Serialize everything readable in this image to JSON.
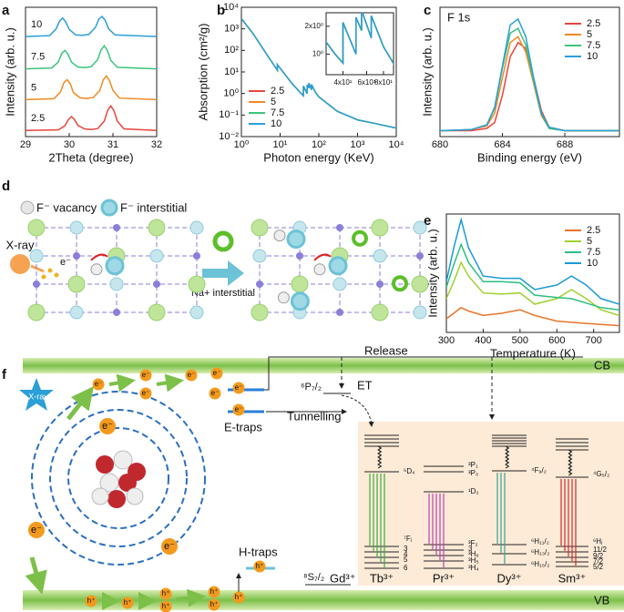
{
  "chart_data": [
    {
      "type": "line",
      "xlabel": "2Theta (degree)",
      "ylabel": "Intensity (arb. u.)",
      "xlim": [
        29,
        32
      ],
      "xticks": [
        29,
        30,
        31,
        32
      ],
      "ylim": [
        0,
        4.2
      ],
      "legend": "inline",
      "series": [
        {
          "name": "2.5",
          "color": "#e8453c",
          "x": [
            29,
            29.75,
            29.9,
            29.98,
            30.05,
            30.12,
            30.2,
            30.35,
            30.5,
            30.65,
            30.8,
            30.88,
            30.95,
            31.02,
            31.1,
            31.25,
            32
          ],
          "values": [
            0.2,
            0.22,
            0.35,
            0.55,
            0.65,
            0.55,
            0.36,
            0.25,
            0.23,
            0.26,
            0.5,
            0.85,
            1.0,
            0.85,
            0.5,
            0.25,
            0.2
          ]
        },
        {
          "name": "5",
          "color": "#f08a24",
          "x": [
            29,
            29.65,
            29.8,
            29.88,
            29.95,
            30.02,
            30.1,
            30.25,
            30.4,
            30.55,
            30.7,
            30.78,
            30.85,
            30.92,
            31.0,
            31.15,
            32
          ],
          "values": [
            1.2,
            1.23,
            1.45,
            1.75,
            1.85,
            1.72,
            1.42,
            1.26,
            1.24,
            1.27,
            1.5,
            1.85,
            1.97,
            1.82,
            1.5,
            1.25,
            1.2
          ]
        },
        {
          "name": "7.5",
          "color": "#3cc47c",
          "x": [
            29,
            29.6,
            29.75,
            29.83,
            29.9,
            29.97,
            30.05,
            30.2,
            30.35,
            30.5,
            30.65,
            30.73,
            30.8,
            30.87,
            30.95,
            31.1,
            32
          ],
          "values": [
            2.2,
            2.23,
            2.42,
            2.7,
            2.8,
            2.68,
            2.42,
            2.26,
            2.24,
            2.27,
            2.5,
            2.82,
            2.95,
            2.8,
            2.48,
            2.25,
            2.2
          ]
        },
        {
          "name": "10",
          "color": "#2a9fd8",
          "x": [
            29,
            29.55,
            29.7,
            29.78,
            29.85,
            29.92,
            30.0,
            30.15,
            30.3,
            30.45,
            30.6,
            30.68,
            30.75,
            30.82,
            30.9,
            31.05,
            32
          ],
          "values": [
            3.25,
            3.28,
            3.5,
            3.75,
            3.85,
            3.72,
            3.48,
            3.3,
            3.29,
            3.32,
            3.55,
            3.82,
            3.9,
            3.78,
            3.5,
            3.3,
            3.25
          ]
        }
      ]
    },
    {
      "type": "line",
      "xlabel": "Photon energy (KeV)",
      "ylabel": "Absorption (cm²/g)",
      "xlog": true,
      "ylog": true,
      "xlim": [
        1,
        10000
      ],
      "ylim": [
        0.01,
        10000
      ],
      "xticks": [
        {
          "value": 1,
          "label": "10⁰"
        },
        {
          "value": 10,
          "label": "10¹"
        },
        {
          "value": 100,
          "label": "10²"
        },
        {
          "value": 1000,
          "label": "10³"
        },
        {
          "value": 10000,
          "label": "10⁴"
        }
      ],
      "yticks": [
        {
          "value": 0.01,
          "label": "10⁻²"
        },
        {
          "value": 0.1,
          "label": "10⁻¹"
        },
        {
          "value": 1,
          "label": "10⁰"
        },
        {
          "value": 10,
          "label": "10¹"
        },
        {
          "value": 100,
          "label": "10²"
        },
        {
          "value": 1000,
          "label": "10³"
        },
        {
          "value": 10000,
          "label": "10⁴"
        }
      ],
      "legend": "lower left",
      "x": [
        1,
        2,
        4,
        8,
        8.5,
        8.5,
        20,
        35,
        40,
        40,
        50,
        50,
        55,
        55,
        65,
        65,
        80,
        100,
        300,
        1000,
        3000,
        10000
      ],
      "series": [
        {
          "name": "2.5",
          "color": "#e8453c",
          "values": [
            3000,
            600,
            90,
            14,
            12,
            22,
            3,
            1.0,
            0.8,
            2.2,
            1.0,
            2.5,
            1.8,
            3.0,
            1.5,
            2.6,
            1.2,
            0.7,
            0.15,
            0.06,
            0.04,
            0.025
          ]
        },
        {
          "name": "5",
          "color": "#f08a24",
          "values": [
            3000,
            600,
            90,
            14,
            12,
            22,
            3,
            1.0,
            0.8,
            2.2,
            1.0,
            2.5,
            1.8,
            3.0,
            1.5,
            2.6,
            1.2,
            0.7,
            0.15,
            0.06,
            0.04,
            0.025
          ]
        },
        {
          "name": "7.5",
          "color": "#3cc47c",
          "values": [
            3000,
            600,
            90,
            14,
            12,
            22,
            3,
            1.0,
            0.8,
            2.2,
            1.0,
            2.5,
            1.8,
            3.0,
            1.5,
            2.6,
            1.2,
            0.7,
            0.15,
            0.06,
            0.04,
            0.025
          ]
        },
        {
          "name": "10",
          "color": "#2a9fd8",
          "values": [
            3000,
            600,
            90,
            14,
            12,
            22,
            3,
            1.0,
            0.8,
            2.2,
            1.0,
            2.5,
            1.8,
            3.0,
            1.5,
            2.6,
            1.2,
            0.7,
            0.15,
            0.06,
            0.04,
            0.025
          ]
        }
      ],
      "inset": {
        "xlog": true,
        "ylog": true,
        "xlim": [
          30,
          95
        ],
        "ylim": [
          0.6,
          2.8
        ],
        "xticks": [
          {
            "value": 40,
            "label": "4x10¹"
          },
          {
            "value": 60,
            "label": "6x10¹"
          },
          {
            "value": 80,
            "label": "8x10¹"
          }
        ],
        "yticks": [
          {
            "value": 1,
            "label": "10⁰"
          },
          {
            "value": 2,
            "label": "2x10⁰"
          }
        ]
      }
    },
    {
      "type": "line",
      "title": "F 1s",
      "xlabel": "Binding energy (eV)",
      "ylabel": "Intensity (arb. u.)",
      "xlim": [
        680,
        691.5
      ],
      "xticks": [
        680,
        684,
        688
      ],
      "ylim": [
        0,
        1.1
      ],
      "legend": "upper right",
      "x": [
        680,
        682,
        683,
        683.5,
        684,
        684.5,
        685,
        685.5,
        686,
        686.5,
        687,
        688,
        691.5
      ],
      "series": [
        {
          "name": "2.5",
          "color": "#e8453c",
          "values": [
            0.05,
            0.05,
            0.07,
            0.12,
            0.35,
            0.68,
            0.8,
            0.75,
            0.5,
            0.22,
            0.08,
            0.05,
            0.05
          ]
        },
        {
          "name": "5",
          "color": "#f08a24",
          "values": [
            0.05,
            0.06,
            0.09,
            0.2,
            0.5,
            0.8,
            0.85,
            0.72,
            0.45,
            0.18,
            0.07,
            0.05,
            0.05
          ]
        },
        {
          "name": "7.5",
          "color": "#3cc47c",
          "values": [
            0.05,
            0.06,
            0.1,
            0.24,
            0.58,
            0.88,
            0.92,
            0.78,
            0.47,
            0.19,
            0.07,
            0.05,
            0.05
          ]
        },
        {
          "name": "10",
          "color": "#2a9fd8",
          "values": [
            0.05,
            0.06,
            0.1,
            0.25,
            0.6,
            0.95,
            1.0,
            0.85,
            0.5,
            0.2,
            0.08,
            0.05,
            0.05
          ]
        }
      ]
    },
    {
      "type": "line",
      "xlabel": "Temperature (K)",
      "ylabel": "Intensity (arb. u.)",
      "xlim": [
        300,
        770
      ],
      "xticks": [
        300,
        400,
        500,
        600,
        700
      ],
      "ylim": [
        0,
        1.05
      ],
      "legend": "upper right",
      "x": [
        300,
        320,
        340,
        360,
        400,
        450,
        500,
        540,
        600,
        640,
        680,
        720,
        770
      ],
      "series": [
        {
          "name": "2.5",
          "color": "#e8752a",
          "values": [
            0.12,
            0.17,
            0.22,
            0.19,
            0.15,
            0.17,
            0.2,
            0.15,
            0.1,
            0.09,
            0.08,
            0.07,
            0.06
          ]
        },
        {
          "name": "5",
          "color": "#a0d030",
          "values": [
            0.3,
            0.45,
            0.62,
            0.5,
            0.35,
            0.34,
            0.35,
            0.25,
            0.3,
            0.38,
            0.3,
            0.2,
            0.15
          ]
        },
        {
          "name": "7.5",
          "color": "#2cbf80",
          "values": [
            0.4,
            0.6,
            0.78,
            0.62,
            0.45,
            0.45,
            0.44,
            0.33,
            0.31,
            0.3,
            0.26,
            0.22,
            0.2
          ]
        },
        {
          "name": "10",
          "color": "#1a9ad6",
          "values": [
            0.45,
            0.75,
            1.0,
            0.75,
            0.5,
            0.48,
            0.48,
            0.38,
            0.42,
            0.5,
            0.42,
            0.3,
            0.25
          ]
        }
      ]
    }
  ],
  "panel_labels": [
    "a",
    "b",
    "c",
    "d",
    "e",
    "f"
  ],
  "diagram_d": {
    "vacancy": "F⁻ vacancy",
    "interstitial": "F⁻ interstitial",
    "xray": "X-ray",
    "electron": "e⁻",
    "arrow_label": "Na+ interstitial"
  },
  "diagram_f": {
    "xray": "X-ray",
    "release": "Release",
    "cb": "CB",
    "vb": "VB",
    "e_traps": "E-traps",
    "h_traps": "H-traps",
    "tunnelling": "Tunnelling",
    "et": "ET",
    "gd_excited": "⁶P₇/₂",
    "gd_ground": "⁸S₇/₂",
    "gd_ion": "Gd³⁺",
    "electrons": [
      "e⁻",
      "e⁻",
      "e⁻",
      "e⁻",
      "e⁻",
      "e⁻",
      "e⁻",
      "e⁻",
      "e⁻",
      "e⁻",
      "e⁻"
    ],
    "holes": [
      "h⁺",
      "h⁺",
      "h⁺",
      "h⁺",
      "h⁺",
      "h⁺",
      "h⁺",
      "h⁺"
    ],
    "ions": [
      {
        "name": "Tb³⁺",
        "levels": [
          "⁵D₄",
          "⁷Fⱼ",
          "3",
          "4",
          "5",
          "6"
        ]
      },
      {
        "name": "Pr³⁺",
        "levels": [
          "³P₁",
          "³P₀",
          "¹D₂",
          "³F₂",
          "3",
          "³H₆",
          "³H₅",
          "³H₄"
        ]
      },
      {
        "name": "Dy³⁺",
        "levels": [
          "⁴F₉/₂",
          "⁶H₁₁/₂",
          "⁶H₁₃/₂",
          "⁶H₁₅/₂"
        ]
      },
      {
        "name": "Sm³⁺",
        "levels": [
          "⁴G₅/₂",
          "⁶Hⱼ",
          "11/2",
          "9/2",
          "7/2",
          "5/2"
        ]
      }
    ]
  }
}
